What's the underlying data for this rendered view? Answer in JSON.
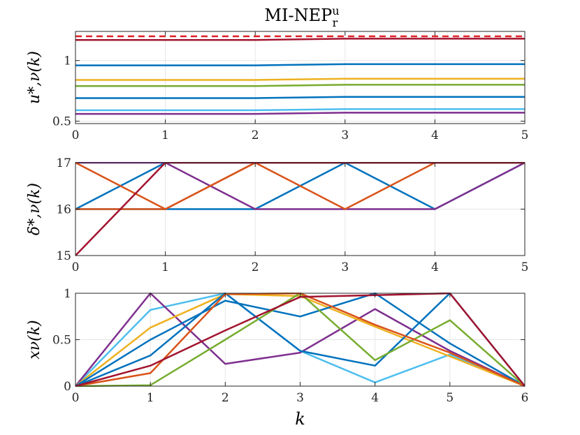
{
  "figure": {
    "title": "MI-NEP",
    "title_sup": "u",
    "title_sub": "r"
  },
  "chart_data": [
    {
      "type": "line",
      "ylabel": "u*,ν(k)",
      "xlim": [
        0,
        5
      ],
      "ylim": [
        0.48,
        1.24
      ],
      "xticks": [
        0,
        1,
        2,
        3,
        4,
        5
      ],
      "yticks": [
        0.5,
        1
      ],
      "ytick_labels": [
        "0.5",
        "1"
      ],
      "grid": true,
      "x": [
        0,
        1,
        2,
        3,
        4,
        5
      ],
      "reference": {
        "y": 1.2,
        "color": "#e01f26",
        "style": "dashed"
      },
      "series": [
        {
          "color": "#a2142f",
          "values": [
            1.17,
            1.17,
            1.17,
            1.18,
            1.18,
            1.18
          ]
        },
        {
          "color": "#0072bd",
          "values": [
            0.96,
            0.96,
            0.96,
            0.97,
            0.97,
            0.97
          ]
        },
        {
          "color": "#edb120",
          "values": [
            0.84,
            0.84,
            0.84,
            0.85,
            0.85,
            0.85
          ]
        },
        {
          "color": "#77ac30",
          "values": [
            0.79,
            0.79,
            0.79,
            0.8,
            0.8,
            0.8
          ]
        },
        {
          "color": "#0072bd",
          "values": [
            0.69,
            0.69,
            0.69,
            0.7,
            0.7,
            0.7
          ]
        },
        {
          "color": "#4dbeee",
          "values": [
            0.59,
            0.59,
            0.59,
            0.6,
            0.6,
            0.6
          ]
        },
        {
          "color": "#7e2f8e",
          "values": [
            0.56,
            0.56,
            0.56,
            0.57,
            0.57,
            0.57
          ]
        }
      ]
    },
    {
      "type": "line",
      "ylabel": "δ*,ν(k)",
      "xlim": [
        0,
        5
      ],
      "ylim": [
        15,
        17
      ],
      "xticks": [
        0,
        1,
        2,
        3,
        4,
        5
      ],
      "yticks": [
        15,
        16,
        17
      ],
      "ytick_labels": [
        "15",
        "16",
        "17"
      ],
      "grid": true,
      "x": [
        0,
        1,
        2,
        3,
        4,
        5
      ],
      "series": [
        {
          "color": "#0072bd",
          "values": [
            16,
            17,
            17,
            17,
            17,
            17
          ]
        },
        {
          "color": "#0072bd",
          "values": [
            16,
            16,
            16,
            17,
            16,
            17
          ]
        },
        {
          "color": "#7e2f8e",
          "values": [
            17,
            17,
            16,
            16,
            16,
            17
          ]
        },
        {
          "color": "#d95319",
          "values": [
            17,
            16,
            17,
            16,
            17,
            17
          ]
        },
        {
          "color": "#d95319",
          "values": [
            16,
            16,
            17,
            17,
            17,
            17
          ]
        },
        {
          "color": "#a2142f",
          "values": [
            15,
            17,
            17,
            17,
            17,
            17
          ]
        }
      ]
    },
    {
      "type": "line",
      "xlabel": "k",
      "ylabel": "xν(k)",
      "xlim": [
        0,
        6
      ],
      "ylim": [
        0,
        1
      ],
      "xticks": [
        0,
        1,
        2,
        3,
        4,
        5,
        6
      ],
      "yticks": [
        0,
        0.5,
        1
      ],
      "ytick_labels": [
        "0",
        "0.5",
        "1"
      ],
      "grid": true,
      "x": [
        0,
        1,
        2,
        3,
        4,
        5,
        6
      ],
      "series": [
        {
          "color": "#4dbeee",
          "values": [
            0,
            0.82,
            1.0,
            0.38,
            0.04,
            0.34,
            0
          ]
        },
        {
          "color": "#7e2f8e",
          "values": [
            0,
            1.0,
            0.24,
            0.36,
            0.83,
            0.38,
            0
          ]
        },
        {
          "color": "#edb120",
          "values": [
            0,
            0.63,
            0.99,
            0.97,
            0.64,
            0.32,
            0
          ]
        },
        {
          "color": "#0072bd",
          "values": [
            0,
            0.5,
            0.92,
            0.75,
            1.0,
            0.46,
            0
          ]
        },
        {
          "color": "#0072bd",
          "values": [
            0,
            0.33,
            1.0,
            0.38,
            0.22,
            1.0,
            0
          ]
        },
        {
          "color": "#77ac30",
          "values": [
            0,
            0.01,
            0.5,
            1.0,
            0.28,
            0.71,
            0
          ]
        },
        {
          "color": "#d95319",
          "values": [
            0,
            0.14,
            0.99,
            1.0,
            0.66,
            0.36,
            0
          ]
        },
        {
          "color": "#a2142f",
          "values": [
            0,
            0.22,
            0.6,
            0.96,
            0.98,
            1.0,
            0
          ]
        }
      ]
    }
  ]
}
